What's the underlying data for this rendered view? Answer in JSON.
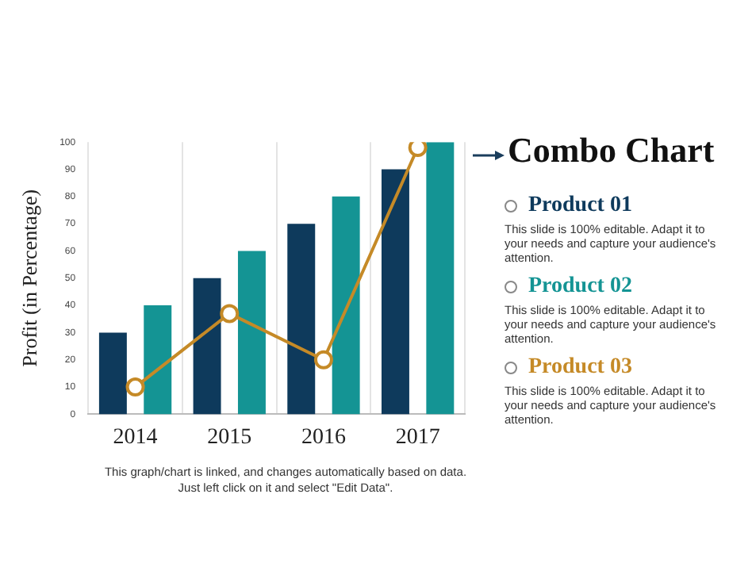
{
  "chart_data": {
    "type": "bar",
    "title": "Combo Chart",
    "ylabel": "Profit (in Percentage)",
    "categories": [
      "2014",
      "2015",
      "2016",
      "2017"
    ],
    "series": [
      {
        "name": "Product 01",
        "color": "#0e3a5c",
        "values": [
          30,
          50,
          70,
          90
        ]
      },
      {
        "name": "Product 02",
        "color": "#149494",
        "values": [
          40,
          60,
          80,
          100
        ]
      },
      {
        "name": "Product 03",
        "color": "#c58a27",
        "type": "line",
        "values": [
          10,
          37,
          20,
          98
        ]
      }
    ],
    "ylim": [
      0,
      100
    ],
    "yticks": [
      0,
      10,
      20,
      30,
      40,
      50,
      60,
      70,
      80,
      90,
      100
    ],
    "grid": "x",
    "legend": "right",
    "marker": "circle",
    "annotations": [
      "This slide is 100% editable. Adapt it to your needs and capture your audience's attention.",
      "This slide is 100% editable. Adapt it to your needs and capture your audience's attention.",
      "This slide is 100% editable. Adapt it to your needs and capture your audience's attention.",
      "This graph/chart is linked, and changes automatically based on data. Just left click on it and select \"Edit Data\"."
    ]
  }
}
